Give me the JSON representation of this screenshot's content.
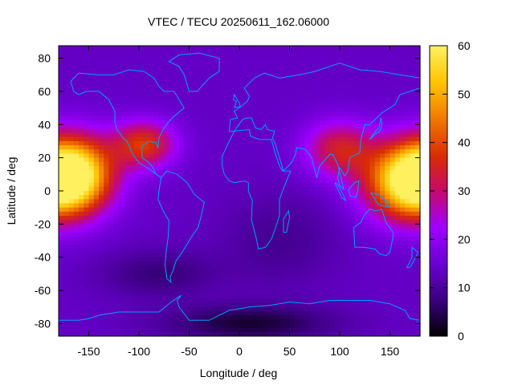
{
  "chart_data": {
    "type": "heatmap",
    "title": "VTEC / TECU 20250611_162.06000",
    "xlabel": "Longitude / deg",
    "ylabel": "Latitude / deg",
    "xlim": [
      -180,
      180
    ],
    "ylim": [
      -87.5,
      87.5
    ],
    "x_ticks": [
      -150,
      -100,
      -50,
      0,
      50,
      100,
      150
    ],
    "y_ticks": [
      -80,
      -60,
      -40,
      -20,
      0,
      20,
      40,
      60,
      80
    ],
    "colorbar": {
      "min": 0,
      "max": 60,
      "ticks": [
        0,
        10,
        20,
        30,
        40,
        50,
        60
      ]
    },
    "colormap": [
      "#000000",
      "#3b0080",
      "#6a00d0",
      "#a000ff",
      "#c40a6c",
      "#d92e00",
      "#f07a00",
      "#ffc400",
      "#fff060"
    ],
    "grid_resolution": {
      "lon_step": 5,
      "lat_step": 2.5
    },
    "field_description_nodes": {
      "background_tecu": 14,
      "peaks": [
        {
          "lon": -165,
          "lat": 10,
          "tecu": 57,
          "sigma_lon": 28,
          "sigma_lat": 16
        },
        {
          "lon": 165,
          "lat": 5,
          "tecu": 50,
          "sigma_lon": 30,
          "sigma_lat": 16
        },
        {
          "lon": -95,
          "lat": 28,
          "tecu": 38,
          "sigma_lon": 22,
          "sigma_lat": 10
        },
        {
          "lon": 100,
          "lat": 25,
          "tecu": 34,
          "sigma_lon": 25,
          "sigma_lat": 12
        }
      ],
      "troughs": [
        {
          "lon": 10,
          "lat": -80,
          "tecu": 3,
          "sigma_lon": 60,
          "sigma_lat": 8
        },
        {
          "lon": -80,
          "lat": -50,
          "tecu": 7,
          "sigma_lon": 40,
          "sigma_lat": 10
        },
        {
          "lon": 40,
          "lat": -30,
          "tecu": 9,
          "sigma_lon": 40,
          "sigma_lat": 20
        }
      ]
    },
    "overlay": "coastlines",
    "overlay_color": "#00a0ff"
  }
}
